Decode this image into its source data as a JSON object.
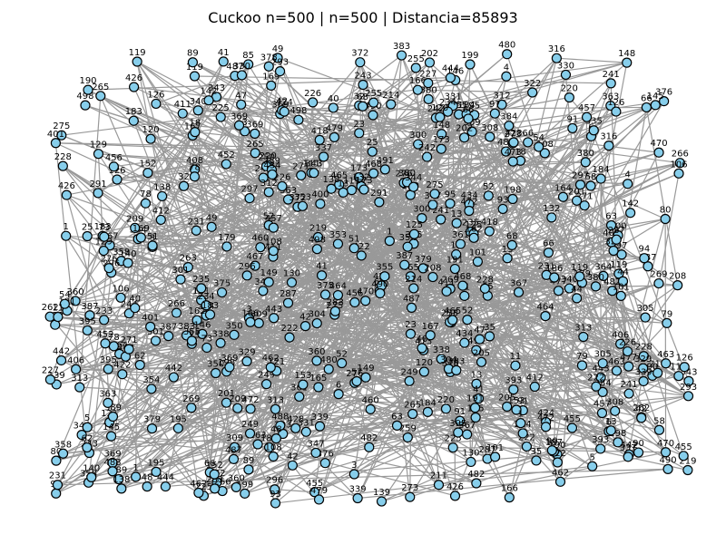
{
  "title": "Cuckoo n=500 | n=500 | Distancia=85893",
  "colors": {
    "node_fill": "#87ceeb",
    "node_stroke": "#000000",
    "edge": "#999999",
    "background": "#ffffff"
  },
  "nodes": [
    "411",
    "225",
    "228",
    "395",
    "363",
    "482",
    "276",
    "68",
    "255",
    "162",
    "6",
    "269",
    "309",
    "442",
    "434",
    "266",
    "13",
    "487",
    "183",
    "287",
    "241",
    "66",
    "138",
    "322",
    "166",
    "387",
    "470",
    "426",
    "249",
    "18",
    "265",
    "313",
    "457",
    "220",
    "191",
    "40",
    "347",
    "173",
    "184",
    "226",
    "222",
    "358",
    "293",
    "369",
    "120",
    "108",
    "121",
    "78",
    "465",
    "498",
    "343",
    "152",
    "198",
    "443",
    "119",
    "480",
    "296",
    "455",
    "91",
    "101",
    "339",
    "490",
    "231",
    "271",
    "90",
    "472",
    "360",
    "383",
    "428",
    "462",
    "262",
    "244",
    "380",
    "473",
    "111",
    "488",
    "250",
    "235",
    "41",
    "195",
    "464",
    "467",
    "378",
    "361",
    "491",
    "444",
    "190",
    "372",
    "422",
    "132",
    "424",
    "57",
    "140",
    "85",
    "412",
    "331",
    "234",
    "211",
    "353",
    "376",
    "367",
    "408",
    "179",
    "338",
    "130",
    "139",
    "187",
    "148",
    "275",
    "119",
    "42",
    "199",
    "300",
    "350",
    "316",
    "35",
    "329",
    "312",
    "463",
    "208",
    "242",
    "479",
    "149",
    "354",
    "305",
    "153",
    "263",
    "145",
    "233",
    "142",
    "400",
    "477",
    "406",
    "54",
    "297",
    "129",
    "219",
    "452",
    "79",
    "456",
    "23",
    "49",
    "126",
    "308",
    "393",
    "340",
    "224",
    "335",
    "146",
    "58",
    "364",
    "1",
    "384",
    "125",
    "73",
    "227",
    "460",
    "301",
    "304",
    "25",
    "66",
    "42",
    "89",
    "97",
    "164",
    "41",
    "80",
    "243",
    "273",
    "344",
    "369",
    "209",
    "169",
    "379",
    "3",
    "375",
    "205",
    "52",
    "4",
    "468",
    "95",
    "380",
    "186",
    "48",
    "214",
    "106",
    "337",
    "32",
    "418",
    "330",
    "201",
    "275",
    "1",
    "3",
    "259",
    "202",
    "63",
    "93",
    "5",
    "51",
    "52",
    "94",
    "355",
    "283",
    "389",
    "13",
    "47",
    "401",
    "62",
    "44",
    "165",
    "126",
    "291",
    "167",
    "11"
  ],
  "edge_count": 1000
}
